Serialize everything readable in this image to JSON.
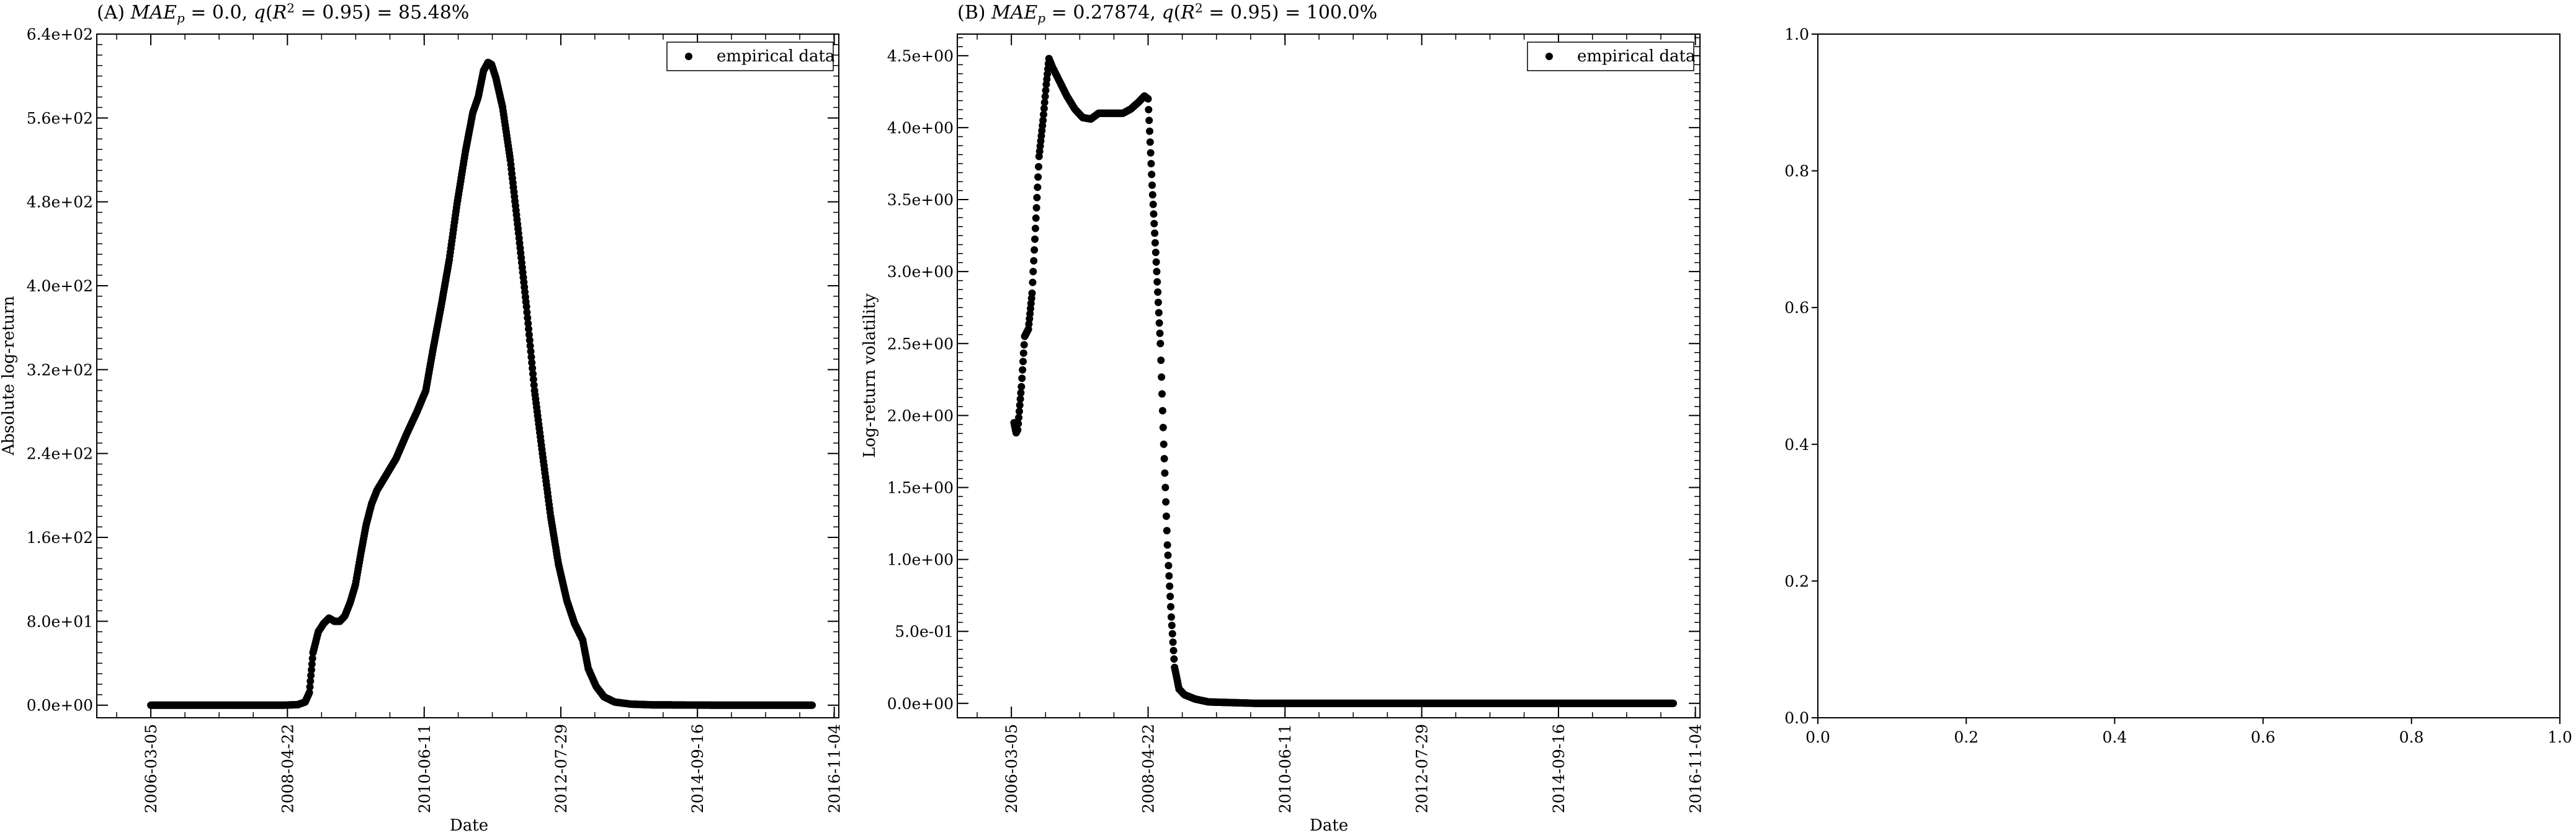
{
  "chart_data": [
    {
      "type": "scatter",
      "title": "(A) MAE_p = 0.0, q(R² = 0.95) = 85.48%",
      "title_parts": {
        "prefix": "(A) ",
        "metric_var": "MAE",
        "metric_sub": "p",
        "metric_rest": " = 0.0, ",
        "q_var": "q",
        "q_open": "(",
        "r2_var": "R",
        "r2_sup": "2",
        "q_rest": " = 0.95) = 85.48%"
      },
      "xlabel": "Date",
      "ylabel": "Absolute log-return",
      "xlim": [
        "2005-05-01",
        "2016-11-30"
      ],
      "ylim": [
        -12,
        640
      ],
      "x_ticks": [
        "2006-03-05",
        "2008-04-22",
        "2010-06-11",
        "2012-07-29",
        "2014-09-16",
        "2016-11-04"
      ],
      "y_ticks": [
        0,
        80,
        160,
        240,
        320,
        400,
        480,
        560,
        640
      ],
      "y_tick_labels": [
        "0.0e+00",
        "8.0e+01",
        "1.6e+02",
        "2.4e+02",
        "3.2e+02",
        "4.0e+02",
        "4.8e+02",
        "5.6e+02",
        "6.4e+02"
      ],
      "legend": {
        "position": "top-right",
        "entries": [
          "empirical data"
        ]
      },
      "grid": false,
      "series": [
        {
          "name": "empirical data",
          "color": "#000000",
          "points": [
            [
              "2006-03-05",
              0
            ],
            [
              "2007-01-01",
              0
            ],
            [
              "2008-04-01",
              0
            ],
            [
              "2008-06-20",
              0.5
            ],
            [
              "2008-08-01",
              3
            ],
            [
              "2008-08-25",
              12
            ],
            [
              "2008-09-15",
              50
            ],
            [
              "2008-10-15",
              70
            ],
            [
              "2008-11-15",
              78
            ],
            [
              "2008-12-15",
              83
            ],
            [
              "2009-01-15",
              80
            ],
            [
              "2009-02-15",
              80
            ],
            [
              "2009-03-15",
              85
            ],
            [
              "2009-04-15",
              98
            ],
            [
              "2009-05-15",
              115
            ],
            [
              "2009-06-15",
              145
            ],
            [
              "2009-07-15",
              172
            ],
            [
              "2009-08-15",
              192
            ],
            [
              "2009-09-15",
              205
            ],
            [
              "2009-11-01",
              218
            ],
            [
              "2010-01-01",
              235
            ],
            [
              "2010-03-01",
              258
            ],
            [
              "2010-05-01",
              280
            ],
            [
              "2010-06-20",
              300
            ],
            [
              "2010-08-01",
              340
            ],
            [
              "2010-09-15",
              380
            ],
            [
              "2010-11-01",
              425
            ],
            [
              "2010-12-15",
              478
            ],
            [
              "2011-02-01",
              528
            ],
            [
              "2011-03-15",
              565
            ],
            [
              "2011-04-15",
              580
            ],
            [
              "2011-05-15",
              605
            ],
            [
              "2011-06-10",
              613
            ],
            [
              "2011-06-30",
              611
            ],
            [
              "2011-07-25",
              598
            ],
            [
              "2011-09-01",
              570
            ],
            [
              "2011-10-15",
              520
            ],
            [
              "2011-12-01",
              450
            ],
            [
              "2012-01-15",
              380
            ],
            [
              "2012-03-01",
              300
            ],
            [
              "2012-04-15",
              240
            ],
            [
              "2012-06-01",
              180
            ],
            [
              "2012-07-15",
              135
            ],
            [
              "2012-09-01",
              100
            ],
            [
              "2012-10-15",
              78
            ],
            [
              "2012-12-01",
              62
            ],
            [
              "2013-01-01",
              35
            ],
            [
              "2013-02-15",
              18
            ],
            [
              "2013-04-01",
              8
            ],
            [
              "2013-06-01",
              3
            ],
            [
              "2013-09-01",
              1
            ],
            [
              "2014-01-01",
              0.3
            ],
            [
              "2015-01-01",
              0
            ],
            [
              "2016-01-01",
              0
            ],
            [
              "2016-07-01",
              0
            ]
          ]
        }
      ]
    },
    {
      "type": "scatter",
      "title": "(B) MAE_p = 0.27874, q(R² = 0.95) = 100.0%",
      "title_parts": {
        "prefix": "(B) ",
        "metric_var": "MAE",
        "metric_sub": "p",
        "metric_rest": " = 0.27874, ",
        "q_var": "q",
        "q_open": "(",
        "r2_var": "R",
        "r2_sup": "2",
        "q_rest": " = 0.95) = 100.0%"
      },
      "xlabel": "Date",
      "ylabel": "Log-return volatility",
      "xlim": [
        "2005-05-01",
        "2016-11-30"
      ],
      "ylim": [
        -0.1,
        4.65
      ],
      "x_ticks": [
        "2006-03-05",
        "2008-04-22",
        "2010-06-11",
        "2012-07-29",
        "2014-09-16",
        "2016-11-04"
      ],
      "y_ticks": [
        0,
        0.5,
        1.0,
        1.5,
        2.0,
        2.5,
        3.0,
        3.5,
        4.0,
        4.5
      ],
      "y_tick_labels": [
        "0.0e+00",
        "5.0e-01",
        "1.0e+00",
        "1.5e+00",
        "2.0e+00",
        "2.5e+00",
        "3.0e+00",
        "3.5e+00",
        "4.0e+00",
        "4.5e+00"
      ],
      "legend": {
        "position": "top-right",
        "entries": [
          "empirical data"
        ]
      },
      "grid": false,
      "series": [
        {
          "name": "empirical data",
          "color": "#000000",
          "points": [
            [
              "2006-03-20",
              1.95
            ],
            [
              "2006-04-01",
              1.88
            ],
            [
              "2006-04-10",
              1.9
            ],
            [
              "2006-05-01",
              2.2
            ],
            [
              "2006-05-20",
              2.55
            ],
            [
              "2006-06-10",
              2.6
            ],
            [
              "2006-07-01",
              2.85
            ],
            [
              "2006-07-20",
              3.3
            ],
            [
              "2006-08-10",
              3.8
            ],
            [
              "2006-09-01",
              4.05
            ],
            [
              "2006-09-20",
              4.3
            ],
            [
              "2006-10-05",
              4.48
            ],
            [
              "2006-10-25",
              4.42
            ],
            [
              "2006-12-01",
              4.33
            ],
            [
              "2007-01-15",
              4.22
            ],
            [
              "2007-03-01",
              4.13
            ],
            [
              "2007-04-15",
              4.07
            ],
            [
              "2007-06-01",
              4.06
            ],
            [
              "2007-07-15",
              4.1
            ],
            [
              "2007-09-01",
              4.1
            ],
            [
              "2007-10-15",
              4.1
            ],
            [
              "2007-12-01",
              4.1
            ],
            [
              "2008-01-15",
              4.13
            ],
            [
              "2008-03-01",
              4.18
            ],
            [
              "2008-04-01",
              4.22
            ],
            [
              "2008-04-22",
              4.2
            ],
            [
              "2008-05-15",
              3.6
            ],
            [
              "2008-06-10",
              3.0
            ],
            [
              "2008-07-01",
              2.5
            ],
            [
              "2008-07-20",
              1.8
            ],
            [
              "2008-08-10",
              1.1
            ],
            [
              "2008-09-01",
              0.6
            ],
            [
              "2008-09-20",
              0.25
            ],
            [
              "2008-10-15",
              0.1
            ],
            [
              "2008-11-15",
              0.06
            ],
            [
              "2009-01-15",
              0.03
            ],
            [
              "2009-04-01",
              0.01
            ],
            [
              "2010-01-01",
              0.0
            ],
            [
              "2012-01-01",
              0.0
            ],
            [
              "2014-01-01",
              0.0
            ],
            [
              "2016-01-01",
              0.0
            ],
            [
              "2016-07-01",
              0.0
            ]
          ]
        }
      ]
    },
    {
      "type": "scatter",
      "title": "",
      "xlabel": "",
      "ylabel": "",
      "xlim": [
        0,
        1
      ],
      "ylim": [
        0,
        1
      ],
      "x_ticks": [
        0.0,
        0.2,
        0.4,
        0.6,
        0.8,
        1.0
      ],
      "y_ticks": [
        0.0,
        0.2,
        0.4,
        0.6,
        0.8,
        1.0
      ],
      "x_tick_labels": [
        "0.0",
        "0.2",
        "0.4",
        "0.6",
        "0.8",
        "1.0"
      ],
      "y_tick_labels": [
        "0.0",
        "0.2",
        "0.4",
        "0.6",
        "0.8",
        "1.0"
      ],
      "grid": false,
      "series": []
    }
  ]
}
